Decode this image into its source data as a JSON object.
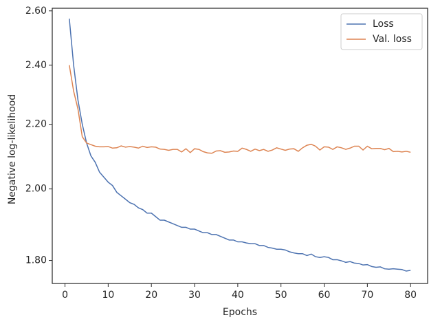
{
  "chart_data": {
    "type": "line",
    "xlabel": "Epochs",
    "ylabel": "Negative log-likelihood",
    "x": [
      1,
      2,
      3,
      4,
      5,
      6,
      7,
      8,
      9,
      10,
      11,
      12,
      13,
      14,
      15,
      16,
      17,
      18,
      19,
      20,
      21,
      22,
      23,
      24,
      25,
      26,
      27,
      28,
      29,
      30,
      31,
      32,
      33,
      34,
      35,
      36,
      37,
      38,
      39,
      40,
      41,
      42,
      43,
      44,
      45,
      46,
      47,
      48,
      49,
      50,
      51,
      52,
      53,
      54,
      55,
      56,
      57,
      58,
      59,
      60,
      61,
      62,
      63,
      64,
      65,
      66,
      67,
      68,
      69,
      70,
      71,
      72,
      73,
      74,
      75,
      76,
      77,
      78,
      79,
      80
    ],
    "series": [
      {
        "name": "Loss",
        "color": "#4c72b0",
        "values": [
          2.57,
          2.4,
          2.28,
          2.2,
          2.14,
          2.1,
          2.08,
          2.05,
          2.035,
          2.02,
          2.01,
          1.99,
          1.98,
          1.97,
          1.96,
          1.955,
          1.945,
          1.94,
          1.93,
          1.93,
          1.92,
          1.91,
          1.91,
          1.905,
          1.9,
          1.895,
          1.89,
          1.89,
          1.885,
          1.885,
          1.88,
          1.875,
          1.875,
          1.87,
          1.87,
          1.865,
          1.86,
          1.855,
          1.855,
          1.85,
          1.85,
          1.847,
          1.845,
          1.845,
          1.84,
          1.84,
          1.835,
          1.833,
          1.83,
          1.83,
          1.828,
          1.823,
          1.82,
          1.818,
          1.818,
          1.813,
          1.817,
          1.81,
          1.808,
          1.81,
          1.808,
          1.802,
          1.802,
          1.799,
          1.795,
          1.797,
          1.793,
          1.792,
          1.788,
          1.789,
          1.784,
          1.782,
          1.783,
          1.778,
          1.777,
          1.778,
          1.777,
          1.776,
          1.772,
          1.774
        ]
      },
      {
        "name": "Val. loss",
        "color": "#dd8452",
        "values": [
          2.4,
          2.31,
          2.25,
          2.16,
          2.14,
          2.135,
          2.13,
          2.128,
          2.128,
          2.129,
          2.124,
          2.125,
          2.131,
          2.127,
          2.129,
          2.127,
          2.124,
          2.13,
          2.126,
          2.128,
          2.127,
          2.121,
          2.12,
          2.117,
          2.12,
          2.12,
          2.112,
          2.122,
          2.11,
          2.122,
          2.12,
          2.113,
          2.109,
          2.108,
          2.115,
          2.116,
          2.111,
          2.112,
          2.115,
          2.114,
          2.124,
          2.12,
          2.114,
          2.121,
          2.116,
          2.12,
          2.114,
          2.118,
          2.125,
          2.121,
          2.117,
          2.121,
          2.122,
          2.114,
          2.125,
          2.133,
          2.136,
          2.13,
          2.118,
          2.128,
          2.127,
          2.12,
          2.128,
          2.125,
          2.12,
          2.124,
          2.13,
          2.13,
          2.118,
          2.13,
          2.122,
          2.123,
          2.123,
          2.119,
          2.123,
          2.113,
          2.114,
          2.112,
          2.114,
          2.111
        ]
      }
    ],
    "xlim": [
      -2.95,
      83.95
    ],
    "xticks": [
      0,
      10,
      20,
      30,
      40,
      50,
      60,
      70,
      80
    ],
    "ylim": [
      1.74,
      2.61
    ],
    "yticks": [
      {
        "value": 1.8,
        "label": "1.80"
      },
      {
        "value": 2.0,
        "label": "2.00"
      },
      {
        "value": 2.2,
        "label": "2.20"
      },
      {
        "value": 2.4,
        "label": "2.40"
      },
      {
        "value": 2.6,
        "label": "2.60"
      }
    ],
    "yscale": "log",
    "legend": "upper right"
  }
}
